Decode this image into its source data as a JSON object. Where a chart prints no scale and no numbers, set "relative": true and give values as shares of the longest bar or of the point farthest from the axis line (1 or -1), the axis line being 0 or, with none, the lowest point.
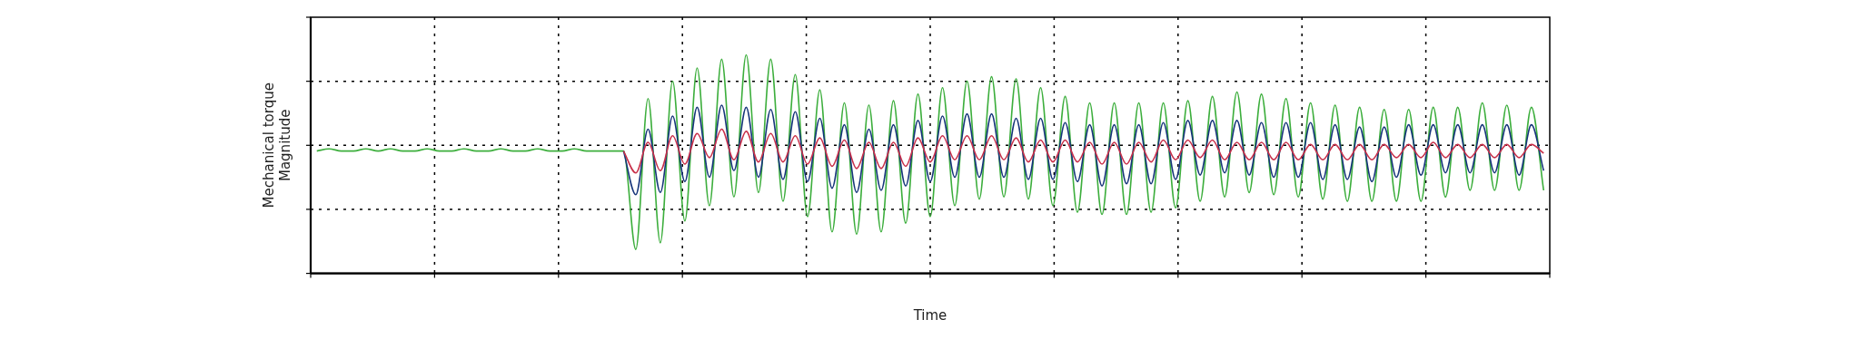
{
  "chart_data": {
    "type": "line",
    "xlabel": "Time",
    "ylabel": "Mechanical torque\nMagnitude",
    "relative": true,
    "grid": true,
    "categories": [
      null,
      null,
      null,
      null,
      null,
      null,
      null,
      null,
      null,
      null,
      null,
      null,
      null,
      null,
      null,
      null,
      null,
      null,
      null,
      null,
      null,
      null,
      null,
      null,
      null,
      null,
      null,
      null,
      null,
      null,
      null,
      null,
      null,
      null,
      null,
      null,
      null,
      null,
      null,
      null,
      null,
      null,
      null,
      null,
      null,
      null,
      null,
      null,
      null,
      null,
      null,
      null,
      null,
      null,
      null,
      null,
      null,
      null,
      null,
      null,
      null,
      null,
      null,
      null,
      null,
      null,
      null,
      null,
      null,
      null,
      null,
      null,
      null,
      null,
      null,
      null,
      null,
      null,
      null,
      null,
      null,
      null,
      null,
      null,
      null,
      null,
      null,
      null,
      null,
      null,
      null,
      null,
      null,
      null,
      null,
      null,
      null,
      null,
      null,
      null,
      null
    ],
    "series": [
      {
        "color": "#3cae3c",
        "values": [
          0.56,
          0.57,
          0.56,
          0.56,
          0.57,
          0.56,
          0.57,
          0.56,
          0.56,
          0.57,
          0.56,
          0.56,
          0.57,
          0.56,
          0.56,
          0.57,
          0.56,
          0.56,
          0.57,
          0.56,
          0.56,
          0.57,
          0.56,
          0.56,
          0.56,
          0.56,
          0.11,
          0.8,
          0.14,
          0.88,
          0.24,
          0.94,
          0.31,
          0.98,
          0.35,
          1.0,
          0.37,
          0.98,
          0.33,
          0.91,
          0.26,
          0.84,
          0.19,
          0.78,
          0.18,
          0.77,
          0.19,
          0.79,
          0.23,
          0.82,
          0.26,
          0.85,
          0.31,
          0.88,
          0.34,
          0.9,
          0.35,
          0.89,
          0.34,
          0.85,
          0.31,
          0.81,
          0.28,
          0.78,
          0.27,
          0.78,
          0.27,
          0.78,
          0.28,
          0.78,
          0.3,
          0.79,
          0.33,
          0.81,
          0.35,
          0.83,
          0.37,
          0.82,
          0.36,
          0.8,
          0.35,
          0.78,
          0.34,
          0.77,
          0.33,
          0.76,
          0.33,
          0.75,
          0.33,
          0.75,
          0.33,
          0.76,
          0.35,
          0.76,
          0.38,
          0.78,
          0.38,
          0.77,
          0.38,
          0.76,
          0.38
        ]
      },
      {
        "color": "#16357a",
        "values": [
          null,
          null,
          null,
          null,
          null,
          null,
          null,
          null,
          null,
          null,
          null,
          null,
          null,
          null,
          null,
          null,
          null,
          null,
          null,
          null,
          null,
          null,
          null,
          null,
          null,
          0.56,
          0.36,
          0.66,
          0.37,
          0.72,
          0.42,
          0.76,
          0.44,
          0.77,
          0.47,
          0.76,
          0.44,
          0.75,
          0.43,
          0.74,
          0.42,
          0.71,
          0.39,
          0.68,
          0.37,
          0.66,
          0.38,
          0.68,
          0.4,
          0.7,
          0.42,
          0.72,
          0.44,
          0.73,
          0.44,
          0.73,
          0.44,
          0.71,
          0.43,
          0.71,
          0.43,
          0.69,
          0.42,
          0.68,
          0.4,
          0.68,
          0.41,
          0.68,
          0.41,
          0.69,
          0.43,
          0.7,
          0.45,
          0.7,
          0.46,
          0.7,
          0.45,
          0.69,
          0.44,
          0.69,
          0.44,
          0.69,
          0.43,
          0.68,
          0.43,
          0.67,
          0.42,
          0.67,
          0.44,
          0.68,
          0.45,
          0.68,
          0.46,
          0.68,
          0.46,
          0.68,
          0.46,
          0.68,
          0.45,
          0.68,
          0.47
        ]
      },
      {
        "color": "#c8304a",
        "values": [
          null,
          null,
          null,
          null,
          null,
          null,
          null,
          null,
          null,
          null,
          null,
          null,
          null,
          null,
          null,
          null,
          null,
          null,
          null,
          null,
          null,
          null,
          null,
          null,
          null,
          0.56,
          0.46,
          0.6,
          0.47,
          0.63,
          0.5,
          0.64,
          0.53,
          0.66,
          0.52,
          0.65,
          0.51,
          0.64,
          0.51,
          0.63,
          0.5,
          0.62,
          0.49,
          0.61,
          0.48,
          0.6,
          0.48,
          0.6,
          0.49,
          0.62,
          0.51,
          0.63,
          0.52,
          0.63,
          0.52,
          0.63,
          0.52,
          0.62,
          0.51,
          0.61,
          0.51,
          0.61,
          0.51,
          0.6,
          0.5,
          0.6,
          0.5,
          0.6,
          0.51,
          0.61,
          0.52,
          0.61,
          0.53,
          0.61,
          0.52,
          0.6,
          0.52,
          0.6,
          0.52,
          0.6,
          0.52,
          0.59,
          0.52,
          0.59,
          0.52,
          0.59,
          0.52,
          0.59,
          0.53,
          0.59,
          0.53,
          0.6,
          0.53,
          0.59,
          0.53,
          0.59,
          0.53,
          0.59,
          0.53,
          0.59,
          0.55
        ]
      }
    ]
  }
}
